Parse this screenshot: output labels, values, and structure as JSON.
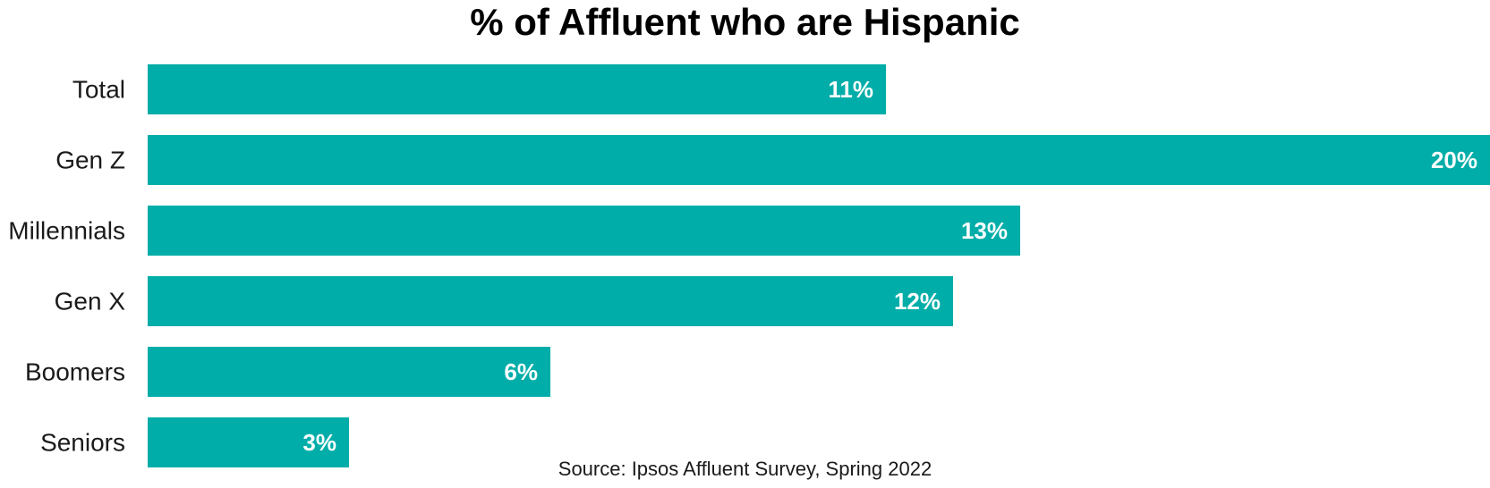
{
  "chart_data": {
    "type": "bar",
    "orientation": "horizontal",
    "title": "% of Affluent who are Hispanic",
    "categories": [
      "Total",
      "Gen Z",
      "Millennials",
      "Gen X",
      "Boomers",
      "Seniors"
    ],
    "values": [
      11,
      20,
      13,
      12,
      6,
      3
    ],
    "value_labels": [
      "11%",
      "20%",
      "13%",
      "12%",
      "6%",
      "3%"
    ],
    "xlim": [
      0,
      20
    ],
    "xlabel": "",
    "ylabel": "",
    "grid": false,
    "legend": "none",
    "bar_color": "#00ADA8",
    "value_label_color": "#FFFFFF"
  },
  "source": "Source: Ipsos Affluent Survey, Spring 2022"
}
